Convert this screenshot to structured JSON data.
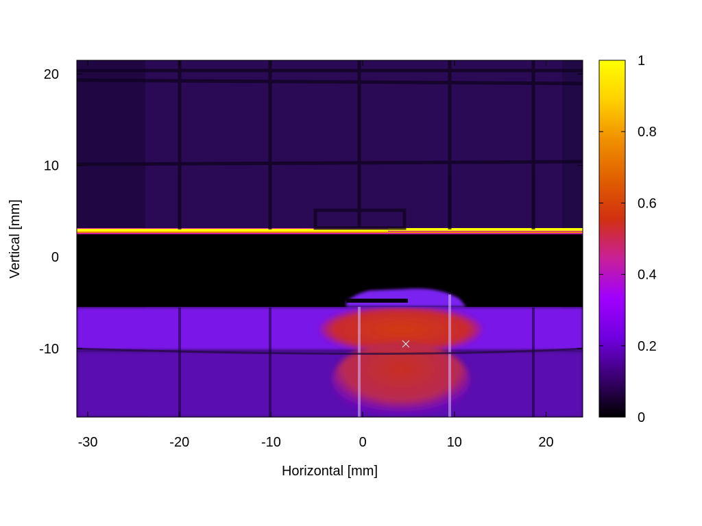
{
  "chart_data": {
    "type": "heatmap",
    "title": "",
    "xlabel": "Horizontal [mm]",
    "ylabel": "Vertical [mm]",
    "xlim": [
      -31.2,
      24
    ],
    "ylim": [
      -17.5,
      21.5
    ],
    "xticks": [
      -30,
      -20,
      -10,
      0,
      10,
      20
    ],
    "yticks": [
      20,
      10,
      0,
      -10
    ],
    "grid": false,
    "colormap": "gnuplot-pm3d-hot",
    "colorbar": {
      "min": 0,
      "max": 1,
      "ticks": [
        0,
        0.2,
        0.4,
        0.6,
        0.8,
        1
      ],
      "colors": [
        "#000000",
        "#3a0070",
        "#7000e0",
        "#a000ff",
        "#c8209a",
        "#d23010",
        "#e06000",
        "#f09000",
        "#ffd000",
        "#ffff00"
      ]
    },
    "regions": [
      {
        "name": "background",
        "x": [
          -31.2,
          24
        ],
        "y": [
          -17.5,
          21.5
        ],
        "level": 0.12
      },
      {
        "name": "dark-gap",
        "x": [
          -31.2,
          24
        ],
        "y": [
          -5.5,
          2.4
        ],
        "level": 0.0
      },
      {
        "name": "bright-line",
        "x": [
          -31.2,
          24
        ],
        "y": [
          2.4,
          3.0
        ],
        "level": 1.0
      },
      {
        "name": "upper-beam-band",
        "x": [
          -31.2,
          24
        ],
        "y": [
          -10.2,
          -5.5
        ],
        "level": 0.3
      },
      {
        "name": "lower-beam-band",
        "x": [
          -31.2,
          24
        ],
        "y": [
          -17.5,
          -10.2
        ],
        "level": 0.18
      },
      {
        "name": "beam-core-upper",
        "x": [
          -3.5,
          12.5
        ],
        "y": [
          -10.2,
          -5.5
        ],
        "level": 0.55
      },
      {
        "name": "beam-core-lower",
        "x": [
          -2,
          10.5
        ],
        "y": [
          -16.5,
          -10.2
        ],
        "level": 0.5
      }
    ],
    "markers": [
      {
        "x": 4.7,
        "y": -9.5,
        "symbol": "cross"
      }
    ]
  }
}
